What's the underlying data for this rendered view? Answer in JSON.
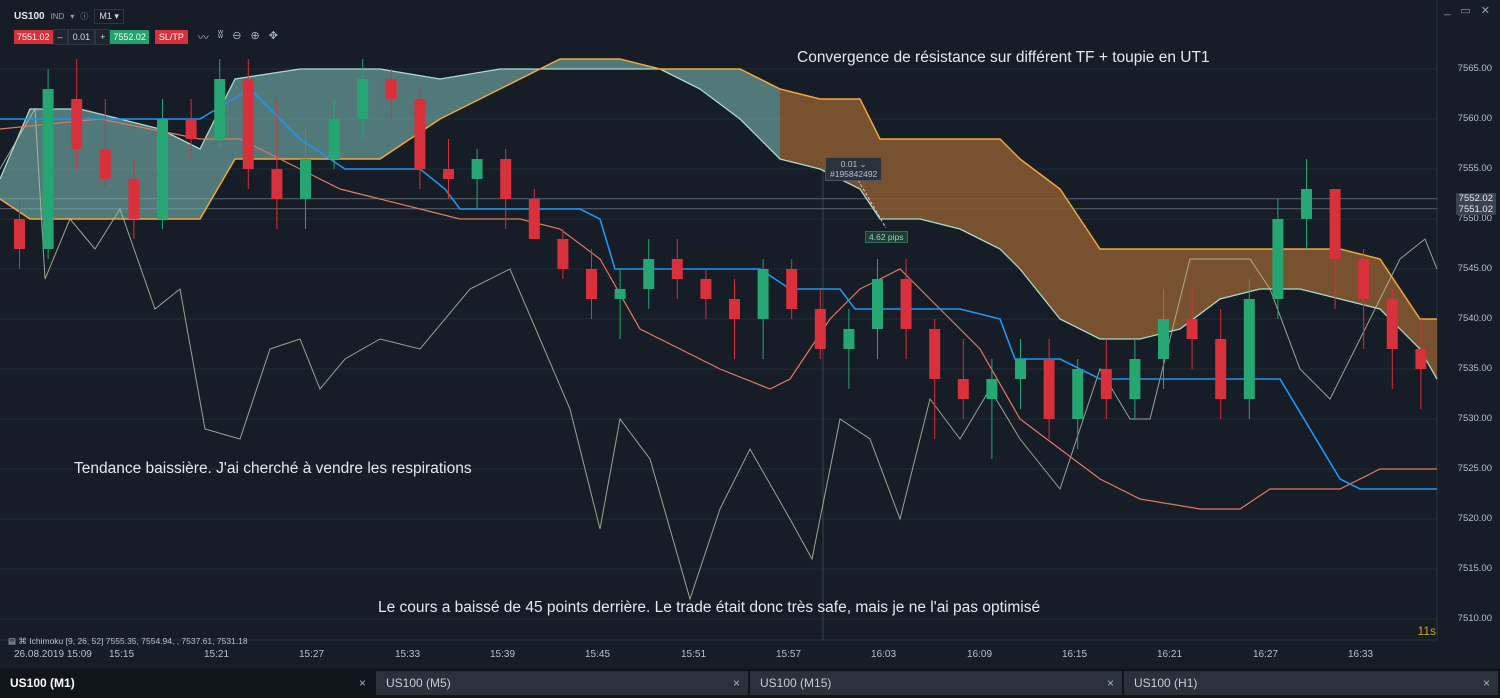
{
  "header": {
    "symbol": "US100",
    "symbol_tag": "IND",
    "info_icon": "info-icon",
    "timeframe": "M1",
    "window_minimize": "_",
    "window_maximize": "▭",
    "window_close": "✕"
  },
  "trade_bar": {
    "sell_price": "7551.02",
    "minus": "–",
    "volume": "0.01",
    "plus": "+",
    "buy_price": "7552.02",
    "sltp_label": "SL/TP"
  },
  "annotations": {
    "top": "Convergence de résistance sur différent TF + toupie en UT1",
    "left": "Tendance baissière. J'ai cherché à vendre les respirations",
    "bottom": "Le cours a baissé de 45 points derrière. Le trade était donc très safe, mais je ne l'ai pas optimisé"
  },
  "position": {
    "volume": "0.01",
    "ticket": "#195842492",
    "pips": "4.62 pips"
  },
  "indicator_legend": "Ichimoku [9, 26, 52] 7555.35, 7554.94, , 7537.61, 7531.18",
  "countdown": "11s",
  "price_axis": [
    "7565.00",
    "7560.00",
    "7555.00",
    "7550.00",
    "7545.00",
    "7540.00",
    "7535.00",
    "7530.00",
    "7525.00",
    "7520.00",
    "7515.00",
    "7510.00"
  ],
  "price_tags": [
    "7552.02",
    "7551.02"
  ],
  "time_axis": [
    "26.08.2019 15:09",
    "15:15",
    "15:21",
    "15:27",
    "15:33",
    "15:39",
    "15:45",
    "15:51",
    "15:57",
    "16:03",
    "16:09",
    "16:15",
    "16:21",
    "16:27",
    "16:33"
  ],
  "tabs": [
    {
      "label": "US100 (M1)",
      "close": "×"
    },
    {
      "label": "US100 (M5)",
      "close": "×"
    },
    {
      "label": "US100 (M15)",
      "close": "×"
    },
    {
      "label": "US100 (H1)",
      "close": "×"
    }
  ],
  "colors": {
    "bull": "#26a672",
    "bear": "#d8313c",
    "kijun": "#2196f3",
    "tenkan": "#e07a5f",
    "senkou_b": "#f0a73a",
    "senkou_a": "#a8dcd0",
    "chikou": "#b9c7a8",
    "cloud_bull": "#78b8b0",
    "cloud_bear": "#8a5a30"
  },
  "chart_data": {
    "type": "candlestick",
    "symbol": "US100",
    "timeframe": "M1",
    "ylim": [
      7508,
      7569
    ],
    "indicator": "Ichimoku [9, 26, 52]",
    "candles": [
      [
        7550,
        7552,
        7545,
        7547
      ],
      [
        7547,
        7565,
        7546,
        7563
      ],
      [
        7562,
        7566,
        7555,
        7557
      ],
      [
        7557,
        7562,
        7553,
        7554
      ],
      [
        7554,
        7556,
        7548,
        7550
      ],
      [
        7550,
        7562,
        7549,
        7560
      ],
      [
        7560,
        7562,
        7556,
        7558
      ],
      [
        7558,
        7566,
        7557,
        7564
      ],
      [
        7564,
        7566,
        7553,
        7555
      ],
      [
        7555,
        7562,
        7549,
        7552
      ],
      [
        7552,
        7559,
        7549,
        7556
      ],
      [
        7556,
        7562,
        7555,
        7560
      ],
      [
        7560,
        7566,
        7558,
        7564
      ],
      [
        7564,
        7565,
        7560,
        7562
      ],
      [
        7562,
        7563,
        7553,
        7555
      ],
      [
        7555,
        7558,
        7552,
        7554
      ],
      [
        7554,
        7557,
        7551,
        7556
      ],
      [
        7556,
        7557,
        7549,
        7552
      ],
      [
        7552,
        7553,
        7548,
        7548
      ],
      [
        7548,
        7549,
        7544,
        7545
      ],
      [
        7545,
        7547,
        7540,
        7542
      ],
      [
        7542,
        7545,
        7538,
        7543
      ],
      [
        7543,
        7548,
        7541,
        7546
      ],
      [
        7546,
        7548,
        7542,
        7544
      ],
      [
        7544,
        7545,
        7540,
        7542
      ],
      [
        7542,
        7544,
        7536,
        7540
      ],
      [
        7540,
        7546,
        7536,
        7545
      ],
      [
        7545,
        7546,
        7540,
        7541
      ],
      [
        7541,
        7543,
        7536,
        7537
      ],
      [
        7537,
        7541,
        7533,
        7539
      ],
      [
        7539,
        7546,
        7536,
        7544
      ],
      [
        7544,
        7546,
        7536,
        7539
      ],
      [
        7539,
        7540,
        7528,
        7534
      ],
      [
        7534,
        7538,
        7530,
        7532
      ],
      [
        7532,
        7536,
        7526,
        7534
      ],
      [
        7534,
        7538,
        7531,
        7536
      ],
      [
        7536,
        7538,
        7528,
        7530
      ],
      [
        7530,
        7536,
        7527,
        7535
      ],
      [
        7535,
        7538,
        7530,
        7532
      ],
      [
        7532,
        7538,
        7530,
        7536
      ],
      [
        7536,
        7543,
        7533,
        7540
      ],
      [
        7540,
        7543,
        7535,
        7538
      ],
      [
        7538,
        7541,
        7530,
        7532
      ],
      [
        7532,
        7544,
        7530,
        7542
      ],
      [
        7542,
        7552,
        7540,
        7550
      ],
      [
        7550,
        7556,
        7547,
        7553
      ],
      [
        7553,
        7553,
        7541,
        7546
      ],
      [
        7546,
        7547,
        7537,
        7542
      ],
      [
        7542,
        7543,
        7533,
        7537
      ],
      [
        7537,
        7540,
        7531,
        7535
      ]
    ],
    "x_axis_labels": [
      "26.08.2019 15:09",
      "15:15",
      "15:21",
      "15:27",
      "15:33",
      "15:39",
      "15:45",
      "15:51",
      "15:57",
      "16:03",
      "16:09",
      "16:15",
      "16:21",
      "16:27",
      "16:33"
    ]
  }
}
